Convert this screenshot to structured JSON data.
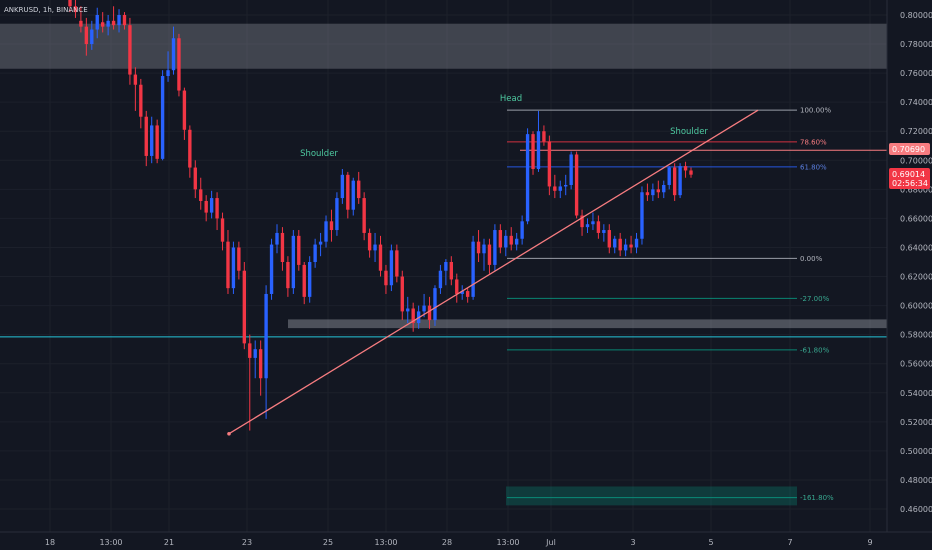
{
  "symbol_label": "ANKRUSD, 1h, BINANCE",
  "colors": {
    "background": "#131722",
    "up": "#2962ff",
    "down": "#f23645",
    "zone": "#9598a1",
    "trendline": "#f77c80",
    "support": "#26c6da",
    "fib_white": "#b2b5be",
    "fib_red": "#f23645",
    "fib_blue": "#2962ff",
    "fib_green": "#089981",
    "pattern_text": "#4ec9a0",
    "price_tag_red": "#f23645",
    "price_tag_red_dark": "#b22833"
  },
  "price_axis": {
    "ticks": [
      "0.80000",
      "0.78000",
      "0.76000",
      "0.74000",
      "0.72000",
      "0.70000",
      "0.68000",
      "0.66000",
      "0.64000",
      "0.62000",
      "0.60000",
      "0.58000",
      "0.56000",
      "0.54000",
      "0.52000",
      "0.50000",
      "0.48000",
      "0.46000"
    ]
  },
  "price_tags": {
    "upper": "0.70690",
    "current": "0.69014",
    "countdown": "02:56:34"
  },
  "time_axis": {
    "labels": [
      "18",
      "13:00",
      "21",
      "23",
      "25",
      "13:00",
      "28",
      "13:00",
      "Jul",
      "3",
      "5",
      "7",
      "9"
    ]
  },
  "pattern_labels": {
    "left_shoulder": "Shoulder",
    "head": "Head",
    "right_shoulder": "Shoulder"
  },
  "fib_levels": [
    {
      "label": "100.00%",
      "price": 0.7345,
      "color": "white"
    },
    {
      "label": "78.60%",
      "price": 0.7127,
      "color": "red"
    },
    {
      "label": "61.80%",
      "price": 0.6955,
      "color": "blue"
    },
    {
      "label": "0.00%",
      "price": 0.6325,
      "color": "white"
    },
    {
      "label": "-27.00%",
      "price": 0.605,
      "color": "green"
    },
    {
      "label": "-61.80%",
      "price": 0.5695,
      "color": "green"
    },
    {
      "label": "-161.80%",
      "price": 0.4678,
      "color": "green"
    }
  ],
  "chart_data": {
    "type": "candlestick",
    "title": "",
    "ylim": [
      0.455,
      0.815
    ],
    "zones": [
      {
        "name": "upper-resistance",
        "from": 0.763,
        "to": 0.794
      },
      {
        "name": "support-zone",
        "from": 0.5845,
        "to": 0.5905
      },
      {
        "name": "target-zone",
        "from": 0.4625,
        "to": 0.4755
      }
    ],
    "horizontal_lines": [
      {
        "name": "support-line",
        "price": 0.5785
      },
      {
        "name": "resistance-line",
        "price": 0.7069
      }
    ],
    "trendline": {
      "from_price": 0.5118,
      "to_price": 0.7345
    },
    "candles": [
      {
        "o": 0.812,
        "h": 0.815,
        "l": 0.802,
        "c": 0.806
      },
      {
        "o": 0.806,
        "h": 0.812,
        "l": 0.798,
        "c": 0.802
      },
      {
        "o": 0.796,
        "h": 0.806,
        "l": 0.788,
        "c": 0.792
      },
      {
        "o": 0.792,
        "h": 0.798,
        "l": 0.772,
        "c": 0.78
      },
      {
        "o": 0.78,
        "h": 0.796,
        "l": 0.776,
        "c": 0.79
      },
      {
        "o": 0.79,
        "h": 0.805,
        "l": 0.784,
        "c": 0.8
      },
      {
        "o": 0.795,
        "h": 0.802,
        "l": 0.788,
        "c": 0.792
      },
      {
        "o": 0.792,
        "h": 0.8,
        "l": 0.786,
        "c": 0.796
      },
      {
        "o": 0.796,
        "h": 0.806,
        "l": 0.79,
        "c": 0.793
      },
      {
        "o": 0.793,
        "h": 0.804,
        "l": 0.788,
        "c": 0.8
      },
      {
        "o": 0.8,
        "h": 0.802,
        "l": 0.79,
        "c": 0.793
      },
      {
        "o": 0.793,
        "h": 0.798,
        "l": 0.752,
        "c": 0.759
      },
      {
        "o": 0.759,
        "h": 0.764,
        "l": 0.734,
        "c": 0.752
      },
      {
        "o": 0.752,
        "h": 0.756,
        "l": 0.722,
        "c": 0.73
      },
      {
        "o": 0.73,
        "h": 0.734,
        "l": 0.696,
        "c": 0.703
      },
      {
        "o": 0.703,
        "h": 0.73,
        "l": 0.698,
        "c": 0.724
      },
      {
        "o": 0.724,
        "h": 0.728,
        "l": 0.698,
        "c": 0.701
      },
      {
        "o": 0.701,
        "h": 0.762,
        "l": 0.7,
        "c": 0.758
      },
      {
        "o": 0.758,
        "h": 0.775,
        "l": 0.754,
        "c": 0.762
      },
      {
        "o": 0.762,
        "h": 0.792,
        "l": 0.759,
        "c": 0.784
      },
      {
        "o": 0.784,
        "h": 0.787,
        "l": 0.744,
        "c": 0.748
      },
      {
        "o": 0.748,
        "h": 0.75,
        "l": 0.714,
        "c": 0.721
      },
      {
        "o": 0.721,
        "h": 0.724,
        "l": 0.688,
        "c": 0.695
      },
      {
        "o": 0.695,
        "h": 0.7,
        "l": 0.674,
        "c": 0.68
      },
      {
        "o": 0.68,
        "h": 0.688,
        "l": 0.666,
        "c": 0.672
      },
      {
        "o": 0.672,
        "h": 0.676,
        "l": 0.658,
        "c": 0.664
      },
      {
        "o": 0.664,
        "h": 0.679,
        "l": 0.66,
        "c": 0.674
      },
      {
        "o": 0.674,
        "h": 0.678,
        "l": 0.652,
        "c": 0.66
      },
      {
        "o": 0.66,
        "h": 0.664,
        "l": 0.638,
        "c": 0.644
      },
      {
        "o": 0.644,
        "h": 0.652,
        "l": 0.608,
        "c": 0.612
      },
      {
        "o": 0.612,
        "h": 0.644,
        "l": 0.608,
        "c": 0.64
      },
      {
        "o": 0.64,
        "h": 0.644,
        "l": 0.618,
        "c": 0.624
      },
      {
        "o": 0.624,
        "h": 0.63,
        "l": 0.57,
        "c": 0.574
      },
      {
        "o": 0.574,
        "h": 0.58,
        "l": 0.514,
        "c": 0.564
      },
      {
        "o": 0.564,
        "h": 0.576,
        "l": 0.55,
        "c": 0.57
      },
      {
        "o": 0.57,
        "h": 0.576,
        "l": 0.538,
        "c": 0.55
      },
      {
        "o": 0.55,
        "h": 0.614,
        "l": 0.522,
        "c": 0.608
      },
      {
        "o": 0.608,
        "h": 0.646,
        "l": 0.604,
        "c": 0.642
      },
      {
        "o": 0.642,
        "h": 0.656,
        "l": 0.636,
        "c": 0.65
      },
      {
        "o": 0.65,
        "h": 0.654,
        "l": 0.624,
        "c": 0.63
      },
      {
        "o": 0.63,
        "h": 0.634,
        "l": 0.606,
        "c": 0.612
      },
      {
        "o": 0.612,
        "h": 0.652,
        "l": 0.608,
        "c": 0.648
      },
      {
        "o": 0.648,
        "h": 0.652,
        "l": 0.624,
        "c": 0.628
      },
      {
        "o": 0.628,
        "h": 0.63,
        "l": 0.601,
        "c": 0.606
      },
      {
        "o": 0.606,
        "h": 0.634,
        "l": 0.602,
        "c": 0.63
      },
      {
        "o": 0.63,
        "h": 0.646,
        "l": 0.626,
        "c": 0.642
      },
      {
        "o": 0.642,
        "h": 0.65,
        "l": 0.634,
        "c": 0.644
      },
      {
        "o": 0.644,
        "h": 0.662,
        "l": 0.64,
        "c": 0.658
      },
      {
        "o": 0.658,
        "h": 0.666,
        "l": 0.644,
        "c": 0.652
      },
      {
        "o": 0.652,
        "h": 0.678,
        "l": 0.648,
        "c": 0.674
      },
      {
        "o": 0.674,
        "h": 0.694,
        "l": 0.67,
        "c": 0.69
      },
      {
        "o": 0.69,
        "h": 0.692,
        "l": 0.66,
        "c": 0.666
      },
      {
        "o": 0.666,
        "h": 0.688,
        "l": 0.662,
        "c": 0.686
      },
      {
        "o": 0.686,
        "h": 0.692,
        "l": 0.67,
        "c": 0.674
      },
      {
        "o": 0.674,
        "h": 0.678,
        "l": 0.645,
        "c": 0.65
      },
      {
        "o": 0.65,
        "h": 0.653,
        "l": 0.633,
        "c": 0.638
      },
      {
        "o": 0.638,
        "h": 0.65,
        "l": 0.63,
        "c": 0.642
      },
      {
        "o": 0.642,
        "h": 0.648,
        "l": 0.62,
        "c": 0.624
      },
      {
        "o": 0.624,
        "h": 0.628,
        "l": 0.608,
        "c": 0.614
      },
      {
        "o": 0.614,
        "h": 0.642,
        "l": 0.61,
        "c": 0.638
      },
      {
        "o": 0.638,
        "h": 0.642,
        "l": 0.616,
        "c": 0.62
      },
      {
        "o": 0.62,
        "h": 0.624,
        "l": 0.59,
        "c": 0.596
      },
      {
        "o": 0.596,
        "h": 0.606,
        "l": 0.588,
        "c": 0.598
      },
      {
        "o": 0.598,
        "h": 0.602,
        "l": 0.582,
        "c": 0.588
      },
      {
        "o": 0.588,
        "h": 0.6,
        "l": 0.584,
        "c": 0.596
      },
      {
        "o": 0.596,
        "h": 0.608,
        "l": 0.592,
        "c": 0.6
      },
      {
        "o": 0.6,
        "h": 0.606,
        "l": 0.584,
        "c": 0.59
      },
      {
        "o": 0.59,
        "h": 0.614,
        "l": 0.586,
        "c": 0.612
      },
      {
        "o": 0.612,
        "h": 0.628,
        "l": 0.608,
        "c": 0.624
      },
      {
        "o": 0.624,
        "h": 0.632,
        "l": 0.614,
        "c": 0.63
      },
      {
        "o": 0.63,
        "h": 0.634,
        "l": 0.614,
        "c": 0.618
      },
      {
        "o": 0.618,
        "h": 0.622,
        "l": 0.602,
        "c": 0.608
      },
      {
        "o": 0.608,
        "h": 0.614,
        "l": 0.604,
        "c": 0.61
      },
      {
        "o": 0.61,
        "h": 0.612,
        "l": 0.602,
        "c": 0.606
      },
      {
        "o": 0.606,
        "h": 0.648,
        "l": 0.604,
        "c": 0.644
      },
      {
        "o": 0.644,
        "h": 0.652,
        "l": 0.63,
        "c": 0.636
      },
      {
        "o": 0.636,
        "h": 0.646,
        "l": 0.624,
        "c": 0.642
      },
      {
        "o": 0.642,
        "h": 0.646,
        "l": 0.622,
        "c": 0.628
      },
      {
        "o": 0.628,
        "h": 0.656,
        "l": 0.624,
        "c": 0.652
      },
      {
        "o": 0.652,
        "h": 0.656,
        "l": 0.636,
        "c": 0.64
      },
      {
        "o": 0.64,
        "h": 0.652,
        "l": 0.634,
        "c": 0.648
      },
      {
        "o": 0.648,
        "h": 0.654,
        "l": 0.638,
        "c": 0.642
      },
      {
        "o": 0.642,
        "h": 0.65,
        "l": 0.638,
        "c": 0.646
      },
      {
        "o": 0.646,
        "h": 0.662,
        "l": 0.642,
        "c": 0.658
      },
      {
        "o": 0.658,
        "h": 0.722,
        "l": 0.656,
        "c": 0.718
      },
      {
        "o": 0.718,
        "h": 0.72,
        "l": 0.69,
        "c": 0.694
      },
      {
        "o": 0.694,
        "h": 0.734,
        "l": 0.692,
        "c": 0.72
      },
      {
        "o": 0.72,
        "h": 0.724,
        "l": 0.71,
        "c": 0.713
      },
      {
        "o": 0.713,
        "h": 0.717,
        "l": 0.676,
        "c": 0.682
      },
      {
        "o": 0.682,
        "h": 0.69,
        "l": 0.674,
        "c": 0.679
      },
      {
        "o": 0.679,
        "h": 0.686,
        "l": 0.674,
        "c": 0.682
      },
      {
        "o": 0.682,
        "h": 0.69,
        "l": 0.676,
        "c": 0.683
      },
      {
        "o": 0.683,
        "h": 0.706,
        "l": 0.68,
        "c": 0.704
      },
      {
        "o": 0.704,
        "h": 0.706,
        "l": 0.66,
        "c": 0.662
      },
      {
        "o": 0.662,
        "h": 0.666,
        "l": 0.648,
        "c": 0.654
      },
      {
        "o": 0.654,
        "h": 0.66,
        "l": 0.65,
        "c": 0.656
      },
      {
        "o": 0.656,
        "h": 0.664,
        "l": 0.652,
        "c": 0.658
      },
      {
        "o": 0.658,
        "h": 0.662,
        "l": 0.646,
        "c": 0.65
      },
      {
        "o": 0.65,
        "h": 0.656,
        "l": 0.644,
        "c": 0.652
      },
      {
        "o": 0.652,
        "h": 0.656,
        "l": 0.636,
        "c": 0.64
      },
      {
        "o": 0.64,
        "h": 0.648,
        "l": 0.636,
        "c": 0.646
      },
      {
        "o": 0.646,
        "h": 0.65,
        "l": 0.634,
        "c": 0.638
      },
      {
        "o": 0.638,
        "h": 0.646,
        "l": 0.634,
        "c": 0.642
      },
      {
        "o": 0.642,
        "h": 0.648,
        "l": 0.636,
        "c": 0.64
      },
      {
        "o": 0.64,
        "h": 0.65,
        "l": 0.636,
        "c": 0.646
      },
      {
        "o": 0.646,
        "h": 0.682,
        "l": 0.642,
        "c": 0.678
      },
      {
        "o": 0.678,
        "h": 0.684,
        "l": 0.672,
        "c": 0.676
      },
      {
        "o": 0.676,
        "h": 0.684,
        "l": 0.672,
        "c": 0.68
      },
      {
        "o": 0.68,
        "h": 0.686,
        "l": 0.674,
        "c": 0.678
      },
      {
        "o": 0.678,
        "h": 0.686,
        "l": 0.674,
        "c": 0.683
      },
      {
        "o": 0.683,
        "h": 0.696,
        "l": 0.68,
        "c": 0.695
      },
      {
        "o": 0.695,
        "h": 0.698,
        "l": 0.672,
        "c": 0.676
      },
      {
        "o": 0.676,
        "h": 0.698,
        "l": 0.674,
        "c": 0.696
      },
      {
        "o": 0.696,
        "h": 0.699,
        "l": 0.688,
        "c": 0.693
      },
      {
        "o": 0.693,
        "h": 0.695,
        "l": 0.688,
        "c": 0.6901
      }
    ]
  }
}
